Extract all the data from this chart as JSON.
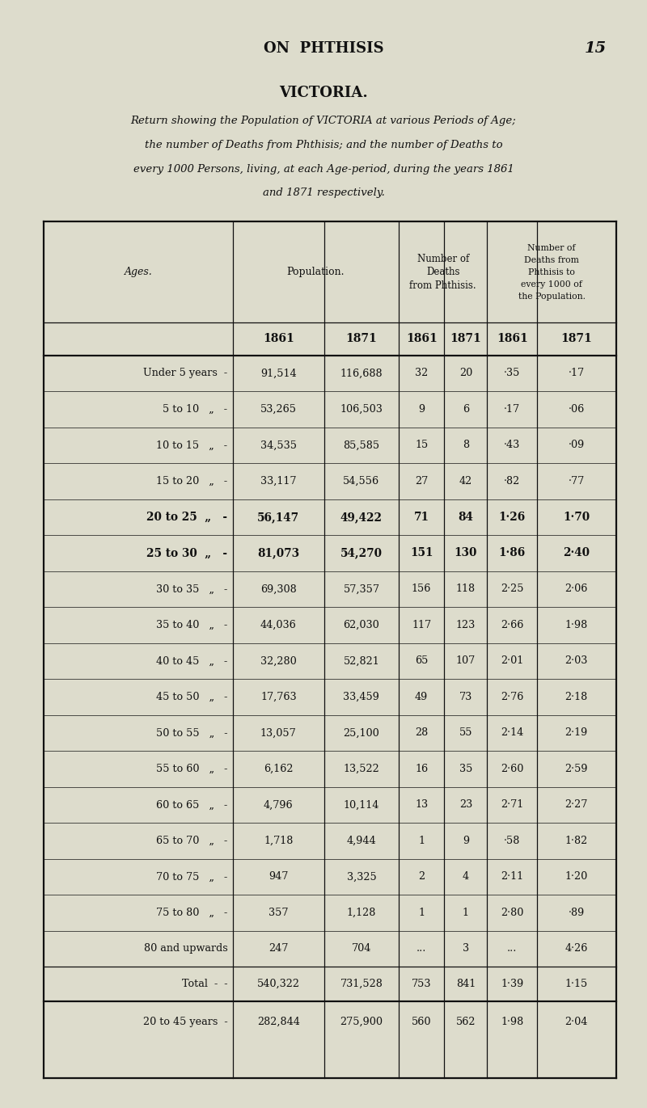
{
  "page_header": "ON PHTHISIS",
  "page_number": "15",
  "title": "VICTORIA.",
  "subtitle_lines": [
    "Return showing the Population of VICTORIA at various Periods of Age;",
    "the number of Deaths from Phthisis; and the number of Deaths to",
    "every 1000 Persons, living, at each Age-period, during the years 1861",
    "and 1871 respectively."
  ],
  "rows": [
    {
      "age": "Under 5 years  -",
      "bold": false,
      "pop1861": "91,514",
      "pop1871": "116,688",
      "d1861": "32",
      "d1871": "20",
      "r1861": "·35",
      "r1871": "·17"
    },
    {
      "age": "5 to 10   „   -",
      "bold": false,
      "pop1861": "53,265",
      "pop1871": "106,503",
      "d1861": "9",
      "d1871": "6",
      "r1861": "·17",
      "r1871": "·06"
    },
    {
      "age": "10 to 15   „   -",
      "bold": false,
      "pop1861": "34,535",
      "pop1871": "85,585",
      "d1861": "15",
      "d1871": "8",
      "r1861": "·43",
      "r1871": "·09"
    },
    {
      "age": "15 to 20   „   -",
      "bold": false,
      "pop1861": "33,117",
      "pop1871": "54,556",
      "d1861": "27",
      "d1871": "42",
      "r1861": "·82",
      "r1871": "·77"
    },
    {
      "age": "20 to 25  „   -",
      "bold": true,
      "pop1861": "56,147",
      "pop1871": "49,422",
      "d1861": "71",
      "d1871": "84",
      "r1861": "1·26",
      "r1871": "1·70"
    },
    {
      "age": "25 to 30  „   -",
      "bold": true,
      "pop1861": "81,073",
      "pop1871": "54,270",
      "d1861": "151",
      "d1871": "130",
      "r1861": "1·86",
      "r1871": "2·40"
    },
    {
      "age": "30 to 35   „   -",
      "bold": false,
      "pop1861": "69,308",
      "pop1871": "57,357",
      "d1861": "156",
      "d1871": "118",
      "r1861": "2·25",
      "r1871": "2·06"
    },
    {
      "age": "35 to 40   „   -",
      "bold": false,
      "pop1861": "44,036",
      "pop1871": "62,030",
      "d1861": "117",
      "d1871": "123",
      "r1861": "2·66",
      "r1871": "1·98"
    },
    {
      "age": "40 to 45   „   -",
      "bold": false,
      "pop1861": "32,280",
      "pop1871": "52,821",
      "d1861": "65",
      "d1871": "107",
      "r1861": "2·01",
      "r1871": "2·03"
    },
    {
      "age": "45 to 50   „   -",
      "bold": false,
      "pop1861": "17,763",
      "pop1871": "33,459",
      "d1861": "49",
      "d1871": "73",
      "r1861": "2·76",
      "r1871": "2·18"
    },
    {
      "age": "50 to 55   „   -",
      "bold": false,
      "pop1861": "13,057",
      "pop1871": "25,100",
      "d1861": "28",
      "d1871": "55",
      "r1861": "2·14",
      "r1871": "2·19"
    },
    {
      "age": "55 to 60   „   -",
      "bold": false,
      "pop1861": "6,162",
      "pop1871": "13,522",
      "d1861": "16",
      "d1871": "35",
      "r1861": "2·60",
      "r1871": "2·59"
    },
    {
      "age": "60 to 65   „   -",
      "bold": false,
      "pop1861": "4,796",
      "pop1871": "10,114",
      "d1861": "13",
      "d1871": "23",
      "r1861": "2·71",
      "r1871": "2·27"
    },
    {
      "age": "65 to 70   „   -",
      "bold": false,
      "pop1861": "1,718",
      "pop1871": "4,944",
      "d1861": "1",
      "d1871": "9",
      "r1861": "·58",
      "r1871": "1·82"
    },
    {
      "age": "70 to 75   „   -",
      "bold": false,
      "pop1861": "947",
      "pop1871": "3,325",
      "d1861": "2",
      "d1871": "4",
      "r1861": "2·11",
      "r1871": "1·20"
    },
    {
      "age": "75 to 80   „   -",
      "bold": false,
      "pop1861": "357",
      "pop1871": "1,128",
      "d1861": "1",
      "d1871": "1",
      "r1861": "2·80",
      "r1871": "·89"
    },
    {
      "age": "80 and upwards",
      "bold": false,
      "pop1861": "247",
      "pop1871": "704",
      "d1861": "...",
      "d1871": "3",
      "r1861": "...",
      "r1871": "4·26"
    }
  ],
  "total_row": {
    "age": "Total  -  -",
    "pop1861": "540,322",
    "pop1871": "731,528",
    "d1861": "753",
    "d1871": "841",
    "r1861": "1·39",
    "r1871": "1·15"
  },
  "summary_row": {
    "age": "20 to 45 years  -",
    "pop1861": "282,844",
    "pop1871": "275,900",
    "d1861": "560",
    "d1871": "562",
    "r1861": "1·98",
    "r1871": "2·04"
  },
  "bg_color": "#dddccc",
  "text_color": "#111111",
  "line_color": "#111111"
}
